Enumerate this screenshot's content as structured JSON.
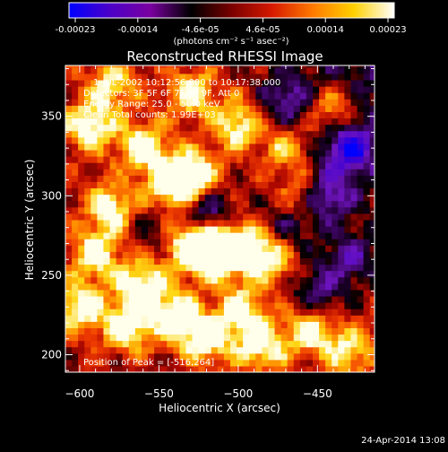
{
  "colorbar": {
    "ticks": [
      "-0.00023",
      "-0.00014",
      "-4.6e-05",
      "4.6e-05",
      "0.00014",
      "0.00023"
    ],
    "units": "(photons cm⁻² s⁻¹ asec⁻²)",
    "stops": [
      "#0000ff",
      "#4b00c8",
      "#7a00a0",
      "#000000",
      "#7a0000",
      "#d61a00",
      "#ff7a00",
      "#ffd000",
      "#ffffff"
    ]
  },
  "chart_data": {
    "type": "heatmap",
    "title": "Reconstructed RHESSI Image",
    "xlabel": "Heliocentric X (arcsec)",
    "ylabel": "Heliocentric Y (arcsec)",
    "xlim": [
      -609,
      -414
    ],
    "ylim": [
      189,
      382
    ],
    "xticks": [
      -600,
      -550,
      -500,
      -450
    ],
    "yticks": [
      200,
      250,
      300,
      350
    ],
    "xtick_labels": [
      "−600",
      "−550",
      "−500",
      "−450"
    ],
    "ytick_labels": [
      "200",
      "250",
      "300",
      "350"
    ],
    "annotations": {
      "time": "1-JUL-2002 10:12:56.000 to 10:17:38.000",
      "detectors": "Detectors: 3F 5F 6F 7F 8F 9F, Att 0",
      "energy": "Energy Range: 25.0 - 50.0 keV",
      "method": "Clean     Total counts: 1.99E+03"
    },
    "peak": {
      "label": "Position of Peak = [-516,264]",
      "x": -516,
      "y": 264
    },
    "value_range": [
      -0.00023,
      0.00023
    ],
    "bright_sources": [
      {
        "x": -594,
        "y": 344,
        "amp": 0.9
      },
      {
        "x": -560,
        "y": 331,
        "amp": 0.9
      },
      {
        "x": -542,
        "y": 307,
        "amp": 0.95
      },
      {
        "x": -528,
        "y": 313,
        "amp": 0.9
      },
      {
        "x": -580,
        "y": 292,
        "amp": 0.85
      },
      {
        "x": -590,
        "y": 263,
        "amp": 0.8
      },
      {
        "x": -530,
        "y": 270,
        "amp": 1.0
      },
      {
        "x": -516,
        "y": 264,
        "amp": 1.0
      },
      {
        "x": -500,
        "y": 268,
        "amp": 0.95
      },
      {
        "x": -480,
        "y": 262,
        "amp": 0.8
      },
      {
        "x": -560,
        "y": 245,
        "amp": 0.9
      },
      {
        "x": -600,
        "y": 230,
        "amp": 0.85
      },
      {
        "x": -570,
        "y": 218,
        "amp": 0.9
      },
      {
        "x": -540,
        "y": 225,
        "amp": 0.85
      },
      {
        "x": -520,
        "y": 210,
        "amp": 0.9
      },
      {
        "x": -498,
        "y": 228,
        "amp": 0.8
      },
      {
        "x": -485,
        "y": 205,
        "amp": 0.8
      },
      {
        "x": -455,
        "y": 215,
        "amp": 0.7
      },
      {
        "x": -430,
        "y": 202,
        "amp": 0.7
      },
      {
        "x": -500,
        "y": 345,
        "amp": 0.8
      },
      {
        "x": -470,
        "y": 330,
        "amp": 0.6
      },
      {
        "x": -440,
        "y": 355,
        "amp": 0.7
      },
      {
        "x": -460,
        "y": 300,
        "amp": 0.55
      },
      {
        "x": -530,
        "y": 365,
        "amp": 0.75
      },
      {
        "x": -580,
        "y": 370,
        "amp": 0.7
      }
    ],
    "dark_sources": [
      {
        "x": -430,
        "y": 330,
        "amp": -0.95
      },
      {
        "x": -445,
        "y": 300,
        "amp": -0.8
      },
      {
        "x": -520,
        "y": 290,
        "amp": -0.75
      },
      {
        "x": -470,
        "y": 360,
        "amp": -0.6
      },
      {
        "x": -430,
        "y": 260,
        "amp": -0.6
      },
      {
        "x": -450,
        "y": 240,
        "amp": -0.55
      },
      {
        "x": -470,
        "y": 280,
        "amp": -0.45
      },
      {
        "x": -555,
        "y": 280,
        "amp": -0.35
      }
    ]
  },
  "footer": {
    "date": "24-Apr-2014 13:08"
  }
}
